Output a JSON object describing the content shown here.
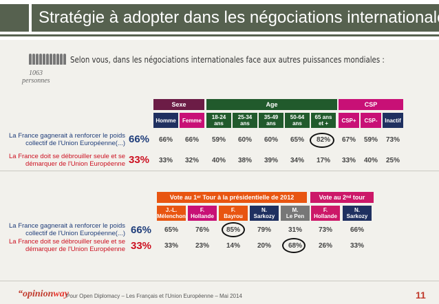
{
  "title": "Stratégie à adopter dans les négociations internationales",
  "question": "Selon vous, dans les négociations internationales face aux autres puissances mondiales :",
  "sample": {
    "n": "1063",
    "unit": "personnes"
  },
  "rows": {
    "r1_label_a": "La France gagnerait à renforcer le poids",
    "r1_label_b": "collectif de l'Union Européenne(...)",
    "r2_label_a": "La France doit se débrouiller seule et se",
    "r2_label_b": "démarquer de l'Union Européenne",
    "r1_total": "66%",
    "r2_total": "33%"
  },
  "colors": {
    "sexe": "#6c1c46",
    "age": "#215a2c",
    "csp": "#c81076",
    "vote1": "#e85511",
    "vote2": "#cc1868",
    "lepen": "#777777",
    "navy": "#1f3060"
  },
  "chart_data": [
    {
      "type": "table",
      "groups": [
        {
          "name": "Sexe",
          "columns": [
            "Homme",
            "Femme"
          ]
        },
        {
          "name": "Age",
          "columns": [
            "18-24 ans",
            "25-34 ans",
            "35-49 ans",
            "50-64 ans",
            "65 ans et +"
          ]
        },
        {
          "name": "CSP",
          "columns": [
            "CSP+",
            "CSP-",
            "Inactif"
          ]
        }
      ],
      "rows": [
        {
          "label": "La France gagnerait à renforcer le poids collectif de l'Union Européenne(...)",
          "total": "66%",
          "values": [
            "66%",
            "66%",
            "59%",
            "60%",
            "60%",
            "65%",
            "82%",
            "67%",
            "59%",
            "73%"
          ]
        },
        {
          "label": "La France doit se débrouiller seule et se démarquer de l'Union Européenne",
          "total": "33%",
          "values": [
            "33%",
            "32%",
            "40%",
            "38%",
            "39%",
            "34%",
            "17%",
            "33%",
            "40%",
            "25%"
          ]
        }
      ],
      "circled": [
        "65 ans et +|0"
      ]
    },
    {
      "type": "table",
      "groups": [
        {
          "name": "Vote au 1er Tour à la présidentielle de 2012",
          "columns": [
            "J.-L. Mélenchon",
            "F. Hollande",
            "F. Bayrou",
            "N. Sarkozy",
            "M. Le Pen"
          ]
        },
        {
          "name": "Vote au 2nd tour",
          "columns": [
            "F. Hollande",
            "N. Sarkozy"
          ]
        }
      ],
      "rows": [
        {
          "label": "La France gagnerait à renforcer le poids collectif de l'Union Européenne(...)",
          "total": "66%",
          "values": [
            "65%",
            "76%",
            "85%",
            "79%",
            "31%",
            "73%",
            "66%"
          ]
        },
        {
          "label": "La France doit se débrouiller seule et se démarquer de l'Union Européenne",
          "total": "33%",
          "values": [
            "33%",
            "23%",
            "14%",
            "20%",
            "68%",
            "26%",
            "33%"
          ]
        }
      ],
      "circled": [
        "F. Bayrou|0",
        "M. Le Pen|1"
      ]
    }
  ],
  "headers1": {
    "sexe": "Sexe",
    "age": "Age",
    "csp": "CSP",
    "cols": [
      {
        "a": "Homme",
        "b": ""
      },
      {
        "a": "Femme",
        "b": ""
      },
      {
        "a": "18-24",
        "b": "ans"
      },
      {
        "a": "25-34",
        "b": "ans"
      },
      {
        "a": "35-49",
        "b": "ans"
      },
      {
        "a": "50-64",
        "b": "ans"
      },
      {
        "a": "65 ans",
        "b": "et +"
      },
      {
        "a": "CSP+",
        "b": ""
      },
      {
        "a": "CSP-",
        "b": ""
      },
      {
        "a": "Inactif",
        "b": ""
      }
    ]
  },
  "headers2": {
    "vote1_a": "Vote au 1",
    "vote1_sup": "er",
    "vote1_b": " Tour à la présidentielle de 2012",
    "vote2_a": "Vote au 2",
    "vote2_sup": "nd",
    "vote2_b": " tour",
    "cols": [
      {
        "a": "J.-L.",
        "b": "Mélenchon"
      },
      {
        "a": "F.",
        "b": "Hollande"
      },
      {
        "a": "F.",
        "b": "Bayrou"
      },
      {
        "a": "N.",
        "b": "Sarkozy"
      },
      {
        "a": "M.",
        "b": "Le Pen"
      },
      {
        "a": "F.",
        "b": "Hollande"
      },
      {
        "a": "N.",
        "b": "Sarkozy"
      }
    ]
  },
  "footer": {
    "logo_a": "opinion",
    "logo_b": "way",
    "logo_quote": "“",
    "text": "Pour Open Diplomacy – Les Français et l'Union Européenne – Mai 2014",
    "page": "11"
  }
}
